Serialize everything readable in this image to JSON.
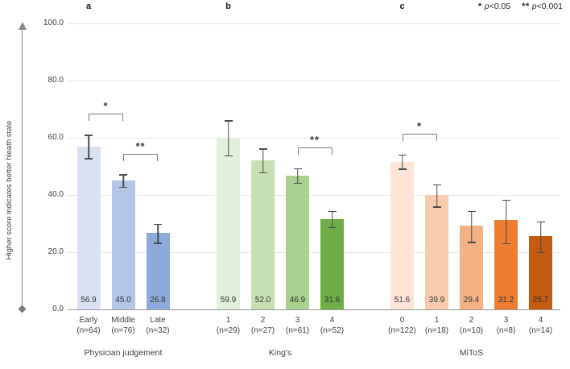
{
  "legend": {
    "star1": "*",
    "p1": "p",
    "rest1": "<0.05",
    "star2": "**",
    "p2": "p",
    "rest2": "<0.001"
  },
  "y_axis": {
    "label": "Higher score indicates better hleath state"
  },
  "chart_data": {
    "type": "bar",
    "title": "",
    "xlabel": "",
    "ylabel": "Higher score indicates better hleath state",
    "ylim": [
      0,
      100
    ],
    "grid": true,
    "legend_position": "top-right",
    "yticks": [
      {
        "v": 0,
        "label": "0.0"
      },
      {
        "v": 20,
        "label": "20.0"
      },
      {
        "v": 40,
        "label": "40.0"
      },
      {
        "v": 60,
        "label": "60.0"
      },
      {
        "v": 80,
        "label": "80.0"
      },
      {
        "v": 100,
        "label": "100.0"
      }
    ],
    "significance_legend": [
      {
        "symbol": "*",
        "meaning": "p<0.05"
      },
      {
        "symbol": "**",
        "meaning": "p<0.001"
      }
    ],
    "groups": [
      {
        "panel": "a",
        "title": "Physician judgement",
        "bars": [
          {
            "label": "Early",
            "n_label": "(n=64)",
            "value": 56.9,
            "value_label": "56.9",
            "err_up": 4.2,
            "err_down": 4.5,
            "color": "#d9e1f2"
          },
          {
            "label": "Middle",
            "n_label": "(n=76)",
            "value": 45.0,
            "value_label": "45.0",
            "err_up": 2.2,
            "err_down": 2.5,
            "color": "#b4c6e7"
          },
          {
            "label": "Late",
            "n_label": "(n=32)",
            "value": 26.8,
            "value_label": "26.8",
            "err_up": 3.2,
            "err_down": 3.9,
            "color": "#8eaadb"
          }
        ]
      },
      {
        "panel": "b",
        "title": "King's",
        "bars": [
          {
            "label": "1",
            "n_label": "(n=29)",
            "value": 59.9,
            "value_label": "59.9",
            "err_up": 6.2,
            "err_down": 6.4,
            "color": "#e2efda"
          },
          {
            "label": "2",
            "n_label": "(n=27)",
            "value": 52.0,
            "value_label": "52.0",
            "err_up": 4.2,
            "err_down": 4.5,
            "color": "#c6e0b4"
          },
          {
            "label": "3",
            "n_label": "(n=61)",
            "value": 46.9,
            "value_label": "46.9",
            "err_up": 2.5,
            "err_down": 3.0,
            "color": "#a9d08e"
          },
          {
            "label": "4",
            "n_label": "(n=52)",
            "value": 31.6,
            "value_label": "31.6",
            "err_up": 2.8,
            "err_down": 3.2,
            "color": "#70ad47"
          }
        ]
      },
      {
        "panel": "c",
        "title": "MiToS",
        "bars": [
          {
            "label": "0",
            "n_label": "(n=122)",
            "value": 51.6,
            "value_label": "51.6",
            "err_up": 2.5,
            "err_down": 2.8,
            "color": "#fce4d6"
          },
          {
            "label": "1",
            "n_label": "(n=18)",
            "value": 39.9,
            "value_label": "39.9",
            "err_up": 3.9,
            "err_down": 4.3,
            "color": "#f8cbad"
          },
          {
            "label": "2",
            "n_label": "(n=10)",
            "value": 29.4,
            "value_label": "29.4",
            "err_up": 5.1,
            "err_down": 6.3,
            "color": "#f4b183"
          },
          {
            "label": "3",
            "n_label": "(n=8)",
            "value": 31.2,
            "value_label": "31.2",
            "err_up": 7.2,
            "err_down": 8.4,
            "color": "#ed7d31"
          },
          {
            "label": "4",
            "n_label": "(n=14)",
            "value": 25.7,
            "value_label": "25.7",
            "err_up": 5.1,
            "err_down": 6.1,
            "color": "#c55a11"
          }
        ]
      }
    ],
    "brackets": [
      {
        "group": 0,
        "from": 0,
        "to": 1,
        "symbol": "*",
        "y": 68.5
      },
      {
        "group": 0,
        "from": 1,
        "to": 2,
        "symbol": "**",
        "y": 54.4
      },
      {
        "group": 1,
        "from": 2,
        "to": 3,
        "symbol": "**",
        "y": 56.6
      },
      {
        "group": 2,
        "from": 0,
        "to": 1,
        "symbol": "*",
        "y": 61.5
      }
    ],
    "colors": {
      "gridline": "#e7e7e7",
      "axis_line": "#9a9a9a",
      "error_bar": "#4a4a4a",
      "bracket": "#7f7f7f",
      "text": "#3f3f3f",
      "blue_shades": [
        "#d9e1f2",
        "#b4c6e7",
        "#8eaadb"
      ],
      "green_shades": [
        "#e2efda",
        "#c6e0b4",
        "#a9d08e",
        "#70ad47"
      ],
      "orange_shades": [
        "#fce4d6",
        "#f8cbad",
        "#f4b183",
        "#ed7d31",
        "#c55a11"
      ]
    }
  }
}
